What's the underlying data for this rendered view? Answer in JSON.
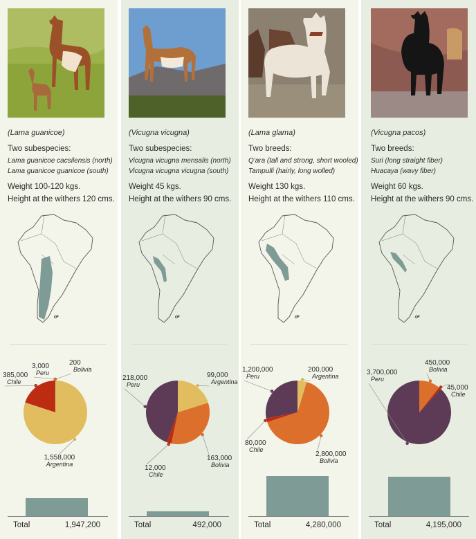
{
  "colors": {
    "col_bg_light": "#f3f4ea",
    "col_bg_mid": "#e8ede2",
    "map_fill": "#7f9b96",
    "bar": "#7f9b96",
    "Argentina": "#e1bd5f",
    "Bolivia": "#dc6f2c",
    "Chile": "#bc2b12",
    "Peru": "#5d3a55"
  },
  "columns": [
    {
      "icon": "guanaco-photo",
      "sci_name": "(Lama guanicoe)",
      "sub_heading": "Two subespecies:",
      "sub_items": [
        "Lama guanicoe cacsilensis (north)",
        "Lama guanicoe guanicoe (south)"
      ],
      "weight": "Weight 100-120 kgs.",
      "height": "Height at the withers 120 cms.",
      "total_label": "Total",
      "total_value": "1,947,200"
    },
    {
      "icon": "vicuna-photo",
      "sci_name": "(Vicugna vicugna)",
      "sub_heading": "Two subespecies:",
      "sub_items": [
        "Vicugna vicugna mensalis (north)",
        "Vicugna vicugna vicugna (south)"
      ],
      "weight": "Weight 45 kgs.",
      "height": "Height at the withers 90 cms.",
      "total_label": "Total",
      "total_value": "492,000"
    },
    {
      "icon": "llama-photo",
      "sci_name": "(Lama glama)",
      "sub_heading": "Two breeds:",
      "sub_items": [
        "Q'ara (tall and strong, short wooled)",
        "Tampulli (hairly, long wolled)"
      ],
      "weight": "Weight 130 kgs.",
      "height": "Height at the withers 110 cms.",
      "total_label": "Total",
      "total_value": "4,280,000"
    },
    {
      "icon": "alpaca-photo",
      "sci_name": "(Vicugna pacos)",
      "sub_heading": "Two breeds:",
      "sub_items": [
        "Suri (long straight fiber)",
        "Huacaya (wavy fiber)"
      ],
      "weight": "Weight 60 kgs.",
      "height": "Height at the withers 90 cms.",
      "total_label": "Total",
      "total_value": "4,195,000"
    }
  ],
  "chart_data": [
    {
      "type": "pie",
      "slices": [
        {
          "label": "Argentina",
          "value_label": "1,558,000",
          "value": 1558000
        },
        {
          "label": "Chile",
          "value_label": "385,000",
          "value": 385000
        },
        {
          "label": "Peru",
          "value_label": "3,000",
          "value": 3000
        },
        {
          "label": "Bolivia",
          "value_label": "200",
          "value": 200
        }
      ]
    },
    {
      "type": "pie",
      "slices": [
        {
          "label": "Argentina",
          "value_label": "99,000",
          "value": 99000
        },
        {
          "label": "Bolivia",
          "value_label": "163,000",
          "value": 163000
        },
        {
          "label": "Chile",
          "value_label": "12,000",
          "value": 12000
        },
        {
          "label": "Peru",
          "value_label": "218,000",
          "value": 218000
        }
      ]
    },
    {
      "type": "pie",
      "slices": [
        {
          "label": "Argentina",
          "value_label": "200,000",
          "value": 200000
        },
        {
          "label": "Bolivia",
          "value_label": "2,800,000",
          "value": 2800000
        },
        {
          "label": "Chile",
          "value_label": "80,000",
          "value": 80000
        },
        {
          "label": "Peru",
          "value_label": "1,200,000",
          "value": 1200000
        }
      ]
    },
    {
      "type": "pie",
      "slices": [
        {
          "label": "Bolivia",
          "value_label": "450,000",
          "value": 450000
        },
        {
          "label": "Chile",
          "value_label": "45,000",
          "value": 45000
        },
        {
          "label": "Peru",
          "value_label": "3,700,000",
          "value": 3700000
        }
      ]
    },
    {
      "type": "bar",
      "categories": [
        "(Lama guanicoe)",
        "(Vicugna vicugna)",
        "(Lama glama)",
        "(Vicugna pacos)"
      ],
      "values": [
        1947200,
        492000,
        4280000,
        4195000
      ]
    }
  ]
}
